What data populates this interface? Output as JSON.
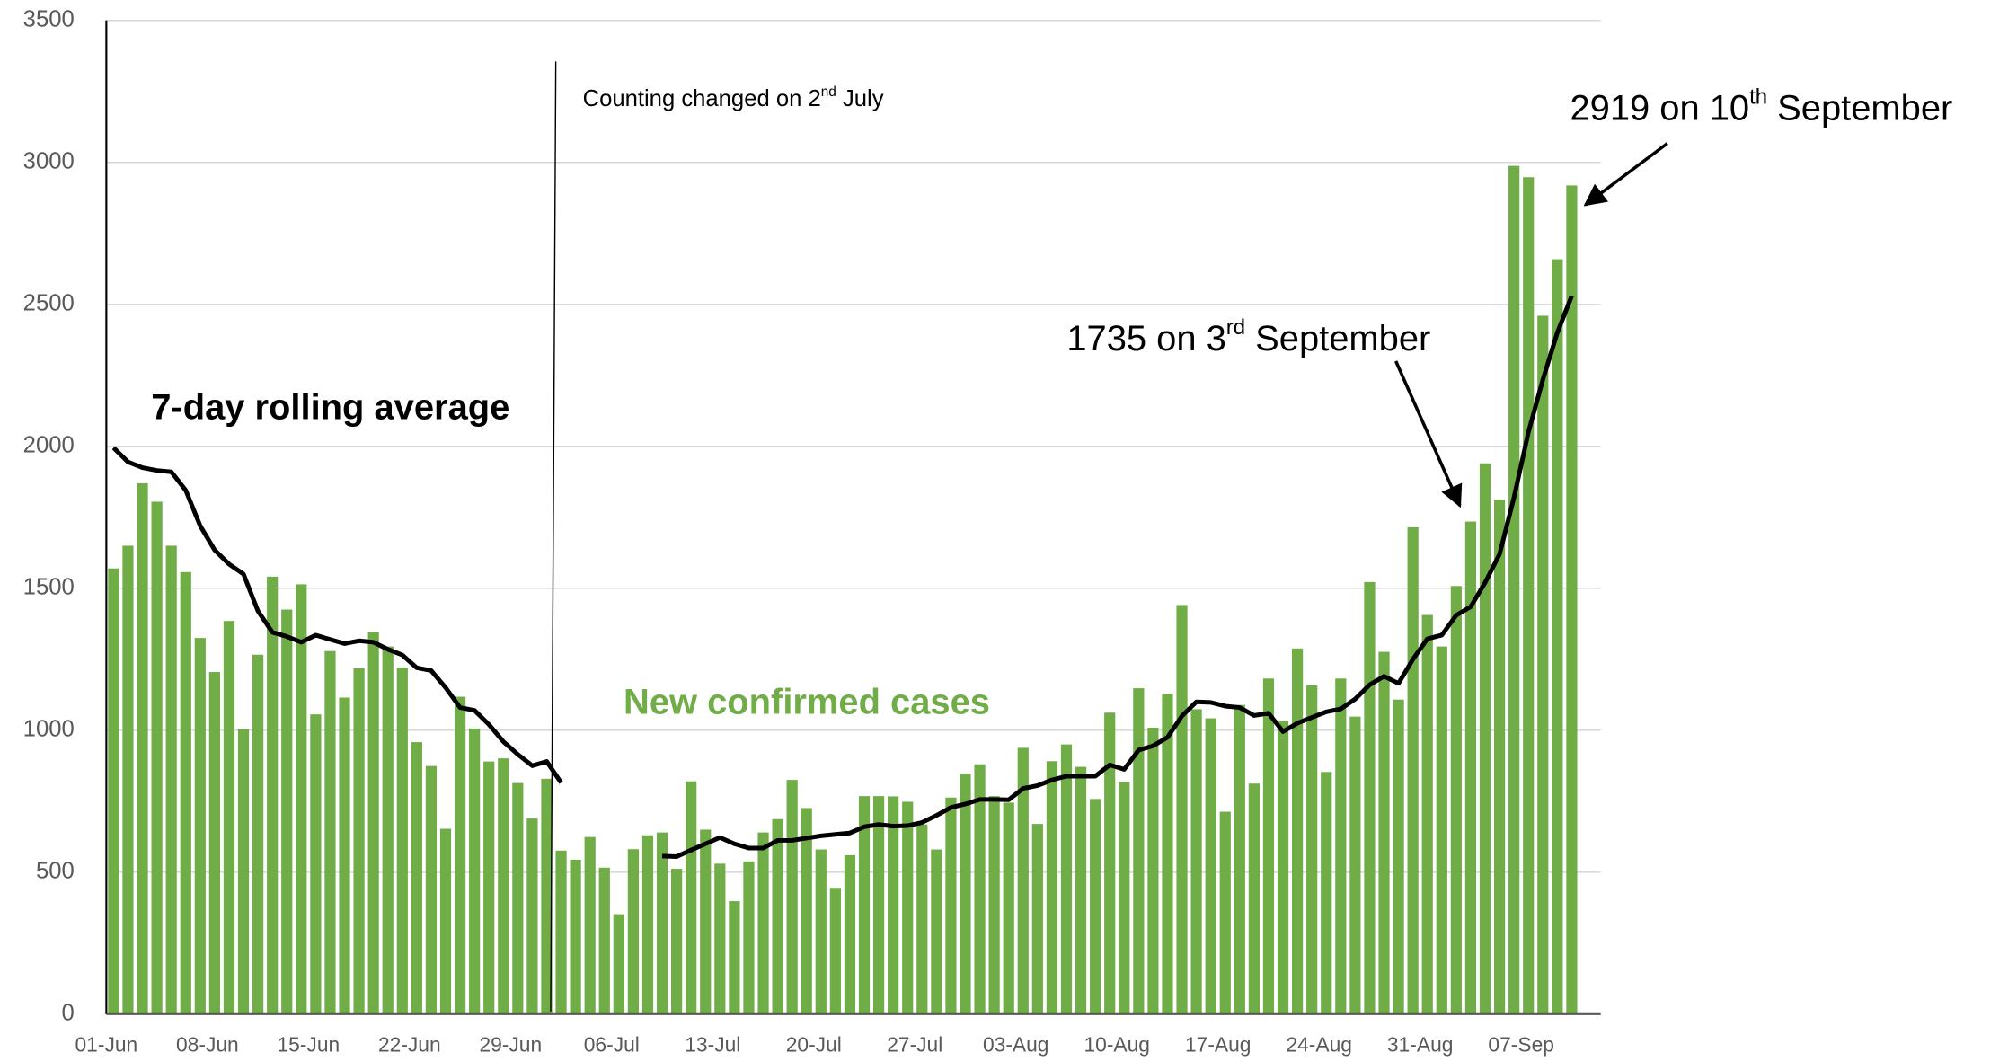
{
  "chart_data": {
    "type": "bar",
    "categories": [
      "01-Jun",
      null,
      null,
      null,
      null,
      null,
      null,
      "08-Jun",
      null,
      null,
      null,
      null,
      null,
      null,
      "15-Jun",
      null,
      null,
      null,
      null,
      null,
      null,
      "22-Jun",
      null,
      null,
      null,
      null,
      null,
      null,
      "29-Jun",
      null,
      null,
      null,
      null,
      null,
      null,
      "06-Jul",
      null,
      null,
      null,
      null,
      null,
      null,
      "13-Jul",
      null,
      null,
      null,
      null,
      null,
      null,
      "20-Jul",
      null,
      null,
      null,
      null,
      null,
      null,
      "27-Jul",
      null,
      null,
      null,
      null,
      null,
      null,
      "03-Aug",
      null,
      null,
      null,
      null,
      null,
      null,
      "10-Aug",
      null,
      null,
      null,
      null,
      null,
      null,
      "17-Aug",
      null,
      null,
      null,
      null,
      null,
      null,
      "24-Aug",
      null,
      null,
      null,
      null,
      null,
      null,
      "31-Aug",
      null,
      null,
      null,
      null,
      null,
      null,
      "07-Sep",
      null,
      null,
      null
    ],
    "series": [
      {
        "name": "New confirmed cases",
        "type": "bar",
        "color": "#70ad47",
        "values": [
          1570,
          1650,
          1870,
          1805,
          1650,
          1557,
          1325,
          1205,
          1385,
          1003,
          1266,
          1541,
          1425,
          1514,
          1056,
          1279,
          1115,
          1218,
          1346,
          1295,
          1221,
          958,
          874,
          653,
          1118,
          1006,
          890,
          901,
          814,
          689,
          829,
          576,
          544,
          624,
          516,
          352,
          581,
          630,
          640,
          512,
          820,
          650,
          530,
          398,
          538,
          640,
          687,
          825,
          726,
          580,
          445,
          560,
          768,
          768,
          767,
          748,
          668,
          580,
          763,
          846,
          880,
          768,
          745,
          938,
          670,
          891,
          950,
          871,
          758,
          1062,
          817,
          1148,
          1009,
          1129,
          1441,
          1074,
          1042,
          713,
          1089,
          812,
          1182,
          1033,
          1288,
          1158,
          853,
          1182,
          1048,
          1522,
          1276,
          1108,
          1715,
          1406,
          1295,
          1508,
          1735,
          1940,
          1813,
          2988,
          2948,
          2460,
          2659,
          2919
        ]
      },
      {
        "name": "7-day rolling average",
        "type": "line",
        "color": "#000000",
        "values": [
          1995,
          1945,
          1925,
          1915,
          1910,
          1845,
          1720,
          1635,
          1585,
          1550,
          1420,
          1345,
          1330,
          1310,
          1335,
          1320,
          1305,
          1315,
          1310,
          1285,
          1265,
          1220,
          1210,
          1150,
          1080,
          1070,
          1020,
          960,
          915,
          875,
          890,
          815,
          null,
          null,
          null,
          null,
          null,
          null,
          557,
          555,
          578,
          600,
          622,
          600,
          585,
          585,
          612,
          612,
          620,
          628,
          633,
          638,
          660,
          668,
          662,
          664,
          675,
          700,
          728,
          740,
          756,
          756,
          755,
          795,
          805,
          825,
          838,
          838,
          838,
          878,
          862,
          930,
          945,
          975,
          1050,
          1100,
          1098,
          1085,
          1080,
          1052,
          1060,
          995,
          1025,
          1045,
          1065,
          1075,
          1110,
          1160,
          1190,
          1165,
          1250,
          1322,
          1335,
          1405,
          1435,
          1520,
          1620,
          1820,
          2050,
          2235,
          2400,
          2530
        ]
      }
    ],
    "ylim": [
      0,
      3500
    ],
    "yticks": [
      0,
      500,
      1000,
      1500,
      2000,
      2500,
      3000,
      3500
    ],
    "grid": true,
    "annotations": [
      {
        "parts": [
          {
            "text": "Counting changed on 2"
          },
          {
            "text": "nd",
            "sup": true
          },
          {
            "text": " July"
          }
        ]
      },
      {
        "parts": [
          {
            "text": "1735 on 3"
          },
          {
            "text": "rd",
            "sup": true
          },
          {
            "text": " September"
          }
        ]
      },
      {
        "parts": [
          {
            "text": "2919 on 10"
          },
          {
            "text": "th",
            "sup": true
          },
          {
            "text": " September"
          }
        ]
      }
    ]
  }
}
